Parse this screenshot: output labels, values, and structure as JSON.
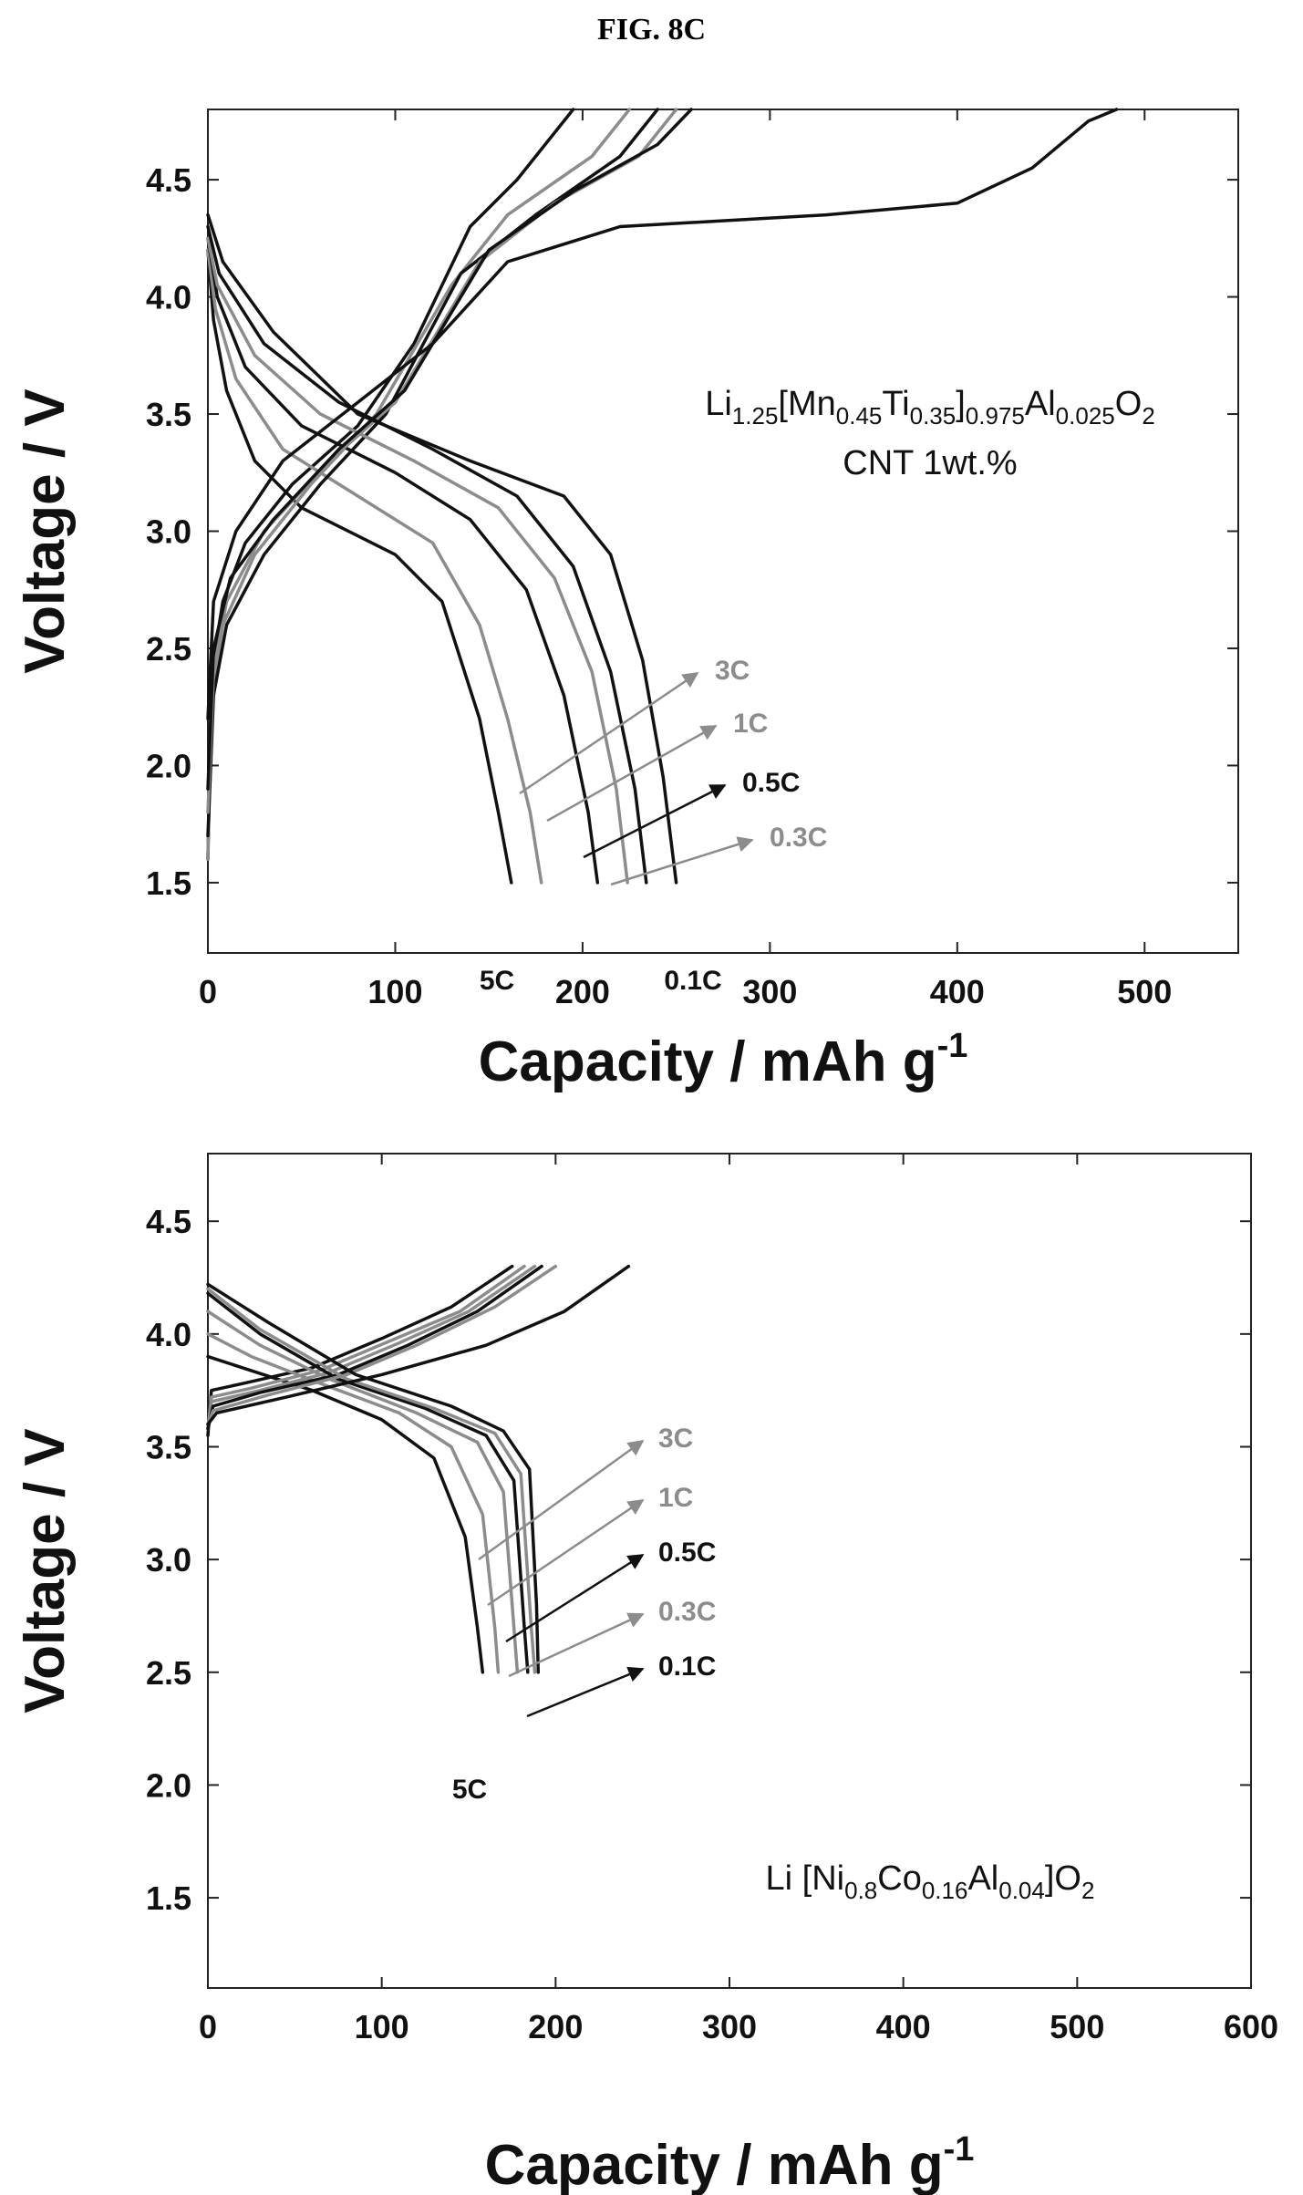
{
  "figure_title": "FIG. 8C",
  "colors": {
    "dark": "#111111",
    "gray": "#8c8c8c"
  },
  "chart_data": [
    {
      "type": "line",
      "xlabel": "Capacity / mAh g",
      "xlabel_sup": "-1",
      "ylabel": "Voltage / V",
      "xlim": [
        0,
        550
      ],
      "ylim": [
        1.2,
        4.8
      ],
      "xticks": [
        0,
        100,
        200,
        300,
        400,
        500
      ],
      "yticks": [
        1.5,
        2.0,
        2.5,
        3.0,
        3.5,
        4.0,
        4.5
      ],
      "grid": false,
      "annotation": {
        "line1_parts": [
          "Li",
          "1.25",
          "[Mn",
          "0.45",
          "Ti",
          "0.35",
          "]",
          "0.975",
          "Al",
          "0.025",
          "O",
          "2"
        ],
        "line2": "CNT  1wt.%"
      },
      "rate_labels": [
        "5C",
        "3C",
        "1C",
        "0.5C",
        "0.3C",
        "0.1C"
      ],
      "series": [
        {
          "name": "5C",
          "color": "dark",
          "charge": [
            [
              0,
              1.6
            ],
            [
              2,
              2.4
            ],
            [
              8,
              2.7
            ],
            [
              20,
              2.95
            ],
            [
              45,
              3.2
            ],
            [
              80,
              3.45
            ],
            [
              110,
              3.8
            ],
            [
              140,
              4.3
            ],
            [
              165,
              4.5
            ],
            [
              195,
              4.8
            ]
          ],
          "discharge": [
            [
              0,
              4.2
            ],
            [
              3,
              3.9
            ],
            [
              10,
              3.6
            ],
            [
              25,
              3.3
            ],
            [
              50,
              3.1
            ],
            [
              100,
              2.9
            ],
            [
              125,
              2.7
            ],
            [
              145,
              2.2
            ],
            [
              155,
              1.8
            ],
            [
              162,
              1.5
            ]
          ]
        },
        {
          "name": "3C",
          "color": "gray",
          "charge": [
            [
              0,
              1.6
            ],
            [
              2,
              2.3
            ],
            [
              8,
              2.6
            ],
            [
              25,
              2.9
            ],
            [
              55,
              3.2
            ],
            [
              90,
              3.5
            ],
            [
              130,
              4.05
            ],
            [
              160,
              4.35
            ],
            [
              205,
              4.6
            ],
            [
              225,
              4.8
            ]
          ],
          "discharge": [
            [
              0,
              4.2
            ],
            [
              4,
              3.95
            ],
            [
              15,
              3.65
            ],
            [
              40,
              3.35
            ],
            [
              80,
              3.15
            ],
            [
              120,
              2.95
            ],
            [
              145,
              2.6
            ],
            [
              160,
              2.2
            ],
            [
              172,
              1.8
            ],
            [
              178,
              1.5
            ]
          ]
        },
        {
          "name": "1C",
          "color": "dark",
          "charge": [
            [
              0,
              1.7
            ],
            [
              3,
              2.3
            ],
            [
              10,
              2.6
            ],
            [
              30,
              2.9
            ],
            [
              60,
              3.2
            ],
            [
              95,
              3.5
            ],
            [
              135,
              4.1
            ],
            [
              175,
              4.35
            ],
            [
              220,
              4.6
            ],
            [
              240,
              4.8
            ]
          ],
          "discharge": [
            [
              0,
              4.25
            ],
            [
              5,
              4.0
            ],
            [
              20,
              3.7
            ],
            [
              50,
              3.45
            ],
            [
              100,
              3.25
            ],
            [
              140,
              3.05
            ],
            [
              170,
              2.75
            ],
            [
              190,
              2.3
            ],
            [
              203,
              1.8
            ],
            [
              208,
              1.5
            ]
          ]
        },
        {
          "name": "0.5C",
          "color": "gray",
          "charge": [
            [
              0,
              1.8
            ],
            [
              3,
              2.4
            ],
            [
              10,
              2.7
            ],
            [
              30,
              3.0
            ],
            [
              65,
              3.3
            ],
            [
              100,
              3.55
            ],
            [
              145,
              4.15
            ],
            [
              185,
              4.4
            ],
            [
              230,
              4.6
            ],
            [
              250,
              4.8
            ]
          ],
          "discharge": [
            [
              0,
              4.25
            ],
            [
              5,
              4.05
            ],
            [
              25,
              3.75
            ],
            [
              60,
              3.5
            ],
            [
              110,
              3.3
            ],
            [
              155,
              3.1
            ],
            [
              185,
              2.8
            ],
            [
              205,
              2.4
            ],
            [
              218,
              1.9
            ],
            [
              224,
              1.5
            ]
          ]
        },
        {
          "name": "0.3C",
          "color": "dark",
          "charge": [
            [
              0,
              1.9
            ],
            [
              3,
              2.5
            ],
            [
              12,
              2.8
            ],
            [
              35,
              3.05
            ],
            [
              70,
              3.35
            ],
            [
              105,
              3.6
            ],
            [
              150,
              4.2
            ],
            [
              195,
              4.45
            ],
            [
              240,
              4.65
            ],
            [
              258,
              4.8
            ]
          ],
          "discharge": [
            [
              0,
              4.3
            ],
            [
              6,
              4.1
            ],
            [
              30,
              3.8
            ],
            [
              70,
              3.55
            ],
            [
              120,
              3.35
            ],
            [
              165,
              3.15
            ],
            [
              195,
              2.85
            ],
            [
              215,
              2.4
            ],
            [
              228,
              1.9
            ],
            [
              234,
              1.5
            ]
          ]
        },
        {
          "name": "0.1C",
          "color": "dark",
          "charge": [
            [
              0,
              2.2
            ],
            [
              3,
              2.7
            ],
            [
              15,
              3.0
            ],
            [
              40,
              3.3
            ],
            [
              80,
              3.55
            ],
            [
              120,
              3.8
            ],
            [
              160,
              4.15
            ],
            [
              220,
              4.3
            ],
            [
              330,
              4.35
            ],
            [
              400,
              4.4
            ],
            [
              440,
              4.55
            ],
            [
              470,
              4.75
            ],
            [
              485,
              4.8
            ]
          ],
          "discharge": [
            [
              0,
              4.35
            ],
            [
              8,
              4.15
            ],
            [
              35,
              3.85
            ],
            [
              80,
              3.5
            ],
            [
              140,
              3.3
            ],
            [
              190,
              3.15
            ],
            [
              215,
              2.9
            ],
            [
              232,
              2.45
            ],
            [
              243,
              1.95
            ],
            [
              250,
              1.5
            ]
          ]
        }
      ]
    },
    {
      "type": "line",
      "xlabel": "Capacity / mAh g",
      "xlabel_sup": "-1",
      "ylabel": "Voltage / V",
      "xlim": [
        0,
        600
      ],
      "ylim": [
        1.1,
        4.8
      ],
      "xticks": [
        0,
        100,
        200,
        300,
        400,
        500,
        600
      ],
      "yticks": [
        1.5,
        2.0,
        2.5,
        3.0,
        3.5,
        4.0,
        4.5
      ],
      "grid": false,
      "annotation": {
        "line1_parts": [
          "Li [Ni",
          "0.8",
          "Co",
          "0.16",
          "Al",
          "0.04",
          "]O",
          "2"
        ]
      },
      "rate_labels": [
        "5C",
        "3C",
        "1C",
        "0.5C",
        "0.3C",
        "0.1C"
      ],
      "series": [
        {
          "name": "5C",
          "color": "dark",
          "charge": [
            [
              0,
              3.55
            ],
            [
              2,
              3.75
            ],
            [
              20,
              3.78
            ],
            [
              60,
              3.85
            ],
            [
              100,
              3.98
            ],
            [
              140,
              4.12
            ],
            [
              175,
              4.3
            ]
          ],
          "discharge": [
            [
              0,
              3.9
            ],
            [
              20,
              3.85
            ],
            [
              60,
              3.75
            ],
            [
              100,
              3.62
            ],
            [
              130,
              3.45
            ],
            [
              148,
              3.1
            ],
            [
              155,
              2.7
            ],
            [
              158,
              2.5
            ]
          ]
        },
        {
          "name": "3C",
          "color": "gray",
          "charge": [
            [
              0,
              3.58
            ],
            [
              2,
              3.72
            ],
            [
              25,
              3.76
            ],
            [
              65,
              3.84
            ],
            [
              105,
              3.97
            ],
            [
              145,
              4.1
            ],
            [
              182,
              4.3
            ]
          ],
          "discharge": [
            [
              0,
              4.0
            ],
            [
              25,
              3.9
            ],
            [
              65,
              3.78
            ],
            [
              110,
              3.65
            ],
            [
              140,
              3.5
            ],
            [
              158,
              3.2
            ],
            [
              165,
              2.7
            ],
            [
              167,
              2.5
            ]
          ]
        },
        {
          "name": "1C",
          "color": "gray",
          "charge": [
            [
              0,
              3.58
            ],
            [
              2,
              3.7
            ],
            [
              30,
              3.75
            ],
            [
              70,
              3.83
            ],
            [
              110,
              3.96
            ],
            [
              150,
              4.1
            ],
            [
              188,
              4.3
            ]
          ],
          "discharge": [
            [
              0,
              4.1
            ],
            [
              30,
              3.95
            ],
            [
              70,
              3.8
            ],
            [
              120,
              3.65
            ],
            [
              155,
              3.52
            ],
            [
              170,
              3.3
            ],
            [
              176,
              2.7
            ],
            [
              178,
              2.5
            ]
          ]
        },
        {
          "name": "0.5C",
          "color": "dark",
          "charge": [
            [
              0,
              3.58
            ],
            [
              3,
              3.68
            ],
            [
              30,
              3.74
            ],
            [
              75,
              3.82
            ],
            [
              115,
              3.95
            ],
            [
              155,
              4.1
            ],
            [
              192,
              4.3
            ]
          ],
          "discharge": [
            [
              0,
              4.18
            ],
            [
              30,
              4.0
            ],
            [
              75,
              3.8
            ],
            [
              125,
              3.67
            ],
            [
              160,
              3.55
            ],
            [
              176,
              3.35
            ],
            [
              182,
              2.7
            ],
            [
              184,
              2.5
            ]
          ]
        },
        {
          "name": "0.3C",
          "color": "gray",
          "charge": [
            [
              0,
              3.6
            ],
            [
              3,
              3.66
            ],
            [
              35,
              3.73
            ],
            [
              80,
              3.82
            ],
            [
              120,
              3.95
            ],
            [
              165,
              4.12
            ],
            [
              200,
              4.3
            ]
          ],
          "discharge": [
            [
              0,
              4.2
            ],
            [
              30,
              4.02
            ],
            [
              80,
              3.8
            ],
            [
              130,
              3.67
            ],
            [
              165,
              3.56
            ],
            [
              180,
              3.38
            ],
            [
              186,
              2.7
            ],
            [
              188,
              2.5
            ]
          ]
        },
        {
          "name": "0.1C",
          "color": "dark",
          "charge": [
            [
              0,
              3.6
            ],
            [
              5,
              3.65
            ],
            [
              45,
              3.72
            ],
            [
              100,
              3.82
            ],
            [
              160,
              3.95
            ],
            [
              205,
              4.1
            ],
            [
              242,
              4.3
            ]
          ],
          "discharge": [
            [
              0,
              4.22
            ],
            [
              35,
              4.05
            ],
            [
              85,
              3.82
            ],
            [
              140,
              3.68
            ],
            [
              170,
              3.57
            ],
            [
              185,
              3.4
            ],
            [
              189,
              2.8
            ],
            [
              190,
              2.5
            ]
          ]
        }
      ]
    }
  ]
}
